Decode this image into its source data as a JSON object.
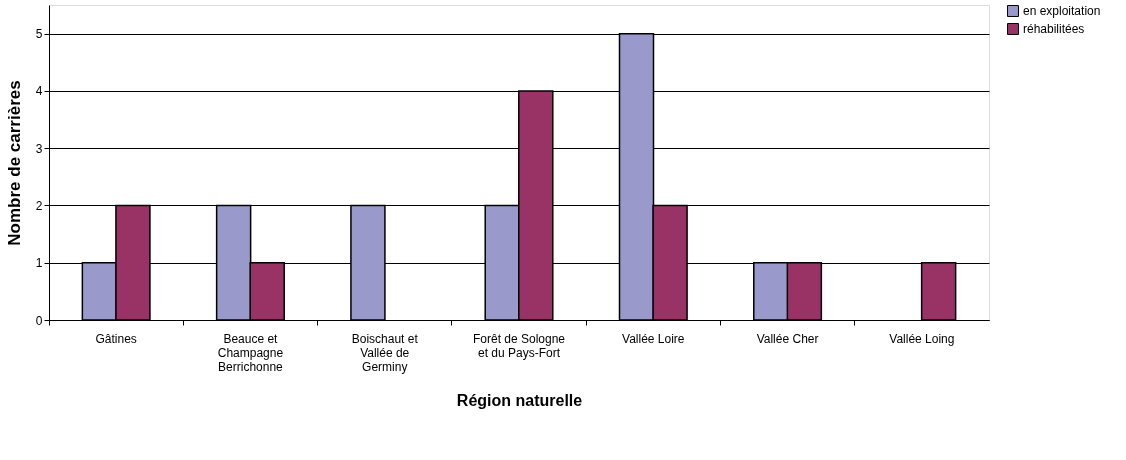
{
  "chart_data": {
    "type": "bar",
    "xlabel": "Région naturelle",
    "ylabel": "Nombre de carrières",
    "categories": [
      "Gâtines",
      "Beauce et Champagne Berrichonne",
      "Boischaut et Vallée de Germiny",
      "Forêt de Sologne et du Pays-Fort",
      "Vallée Loire",
      "Vallée Cher",
      "Vallée Loing"
    ],
    "series": [
      {
        "name": "en exploitation",
        "color": "#9999cc",
        "values": [
          1,
          2,
          2,
          2,
          5,
          1,
          null
        ]
      },
      {
        "name": "réhabilitées",
        "color": "#993366",
        "values": [
          2,
          1,
          null,
          4,
          2,
          1,
          1
        ]
      }
    ],
    "ylim": [
      0,
      5.5
    ],
    "yticks": [
      0,
      1,
      2,
      3,
      4,
      5
    ],
    "grid": "y",
    "legend": "right"
  }
}
